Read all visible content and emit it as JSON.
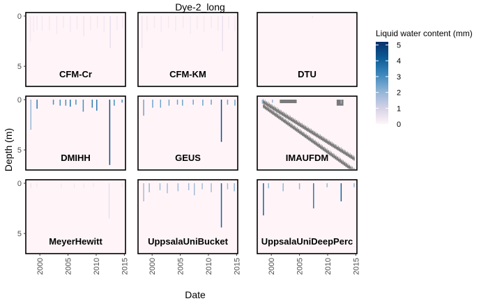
{
  "chart_data": {
    "type": "heatmap",
    "title": "Dye-2_long",
    "xlabel": "Date",
    "ylabel": "Depth (m)",
    "xlim": [
      1997.5,
      2015.2
    ],
    "ylim": [
      7,
      0
    ],
    "x_ticks": [
      "2000",
      "2005",
      "2010",
      "2015"
    ],
    "y_ticks": [
      "0",
      "5"
    ],
    "grid": false,
    "legend": {
      "title": "Liquid water content (mm)",
      "position": "right",
      "ticks": [
        "0",
        "1",
        "2",
        "3",
        "4",
        "5"
      ],
      "range": [
        0,
        5.2
      ],
      "colors": [
        "#fff5f8",
        "#d4d0e6",
        "#8fb4d6",
        "#3d88be",
        "#0c5c96",
        "#08306b"
      ]
    },
    "panels": [
      {
        "name": "CFM-Cr",
        "events": [
          [
            1998.3,
            0,
            2.6,
            0.3
          ],
          [
            1998.9,
            0,
            1.6,
            0.3
          ],
          [
            1999.5,
            0,
            1.4,
            0.3
          ],
          [
            2000.4,
            0,
            1.5,
            0.3
          ],
          [
            2001.7,
            0,
            1.4,
            0.3
          ],
          [
            2003.0,
            0,
            1.8,
            0.3
          ],
          [
            2004.2,
            0,
            1.2,
            0.3
          ],
          [
            2005.4,
            0,
            1.6,
            0.3
          ],
          [
            2006.6,
            0,
            1.3,
            0.3
          ],
          [
            2007.8,
            0,
            2.0,
            0.4
          ],
          [
            2009.0,
            0,
            1.4,
            0.3
          ],
          [
            2010.2,
            0,
            1.2,
            0.3
          ],
          [
            2011.4,
            0,
            1.6,
            0.3
          ],
          [
            2012.5,
            0,
            3.2,
            0.6
          ],
          [
            2013.7,
            0,
            1.4,
            0.3
          ],
          [
            2014.7,
            0,
            1.2,
            0.3
          ]
        ]
      },
      {
        "name": "CFM-KM",
        "events": [
          [
            1998.2,
            0,
            3.2,
            0.4
          ],
          [
            1999.1,
            0,
            1.5,
            0.3
          ],
          [
            2000.4,
            0,
            1.2,
            0.3
          ],
          [
            2001.6,
            0,
            1.6,
            0.3
          ],
          [
            2002.9,
            0,
            1.2,
            0.3
          ],
          [
            2004.2,
            0,
            1.5,
            0.3
          ],
          [
            2005.5,
            0,
            1.2,
            0.3
          ],
          [
            2006.8,
            0,
            1.8,
            0.3
          ],
          [
            2008.0,
            0,
            1.3,
            0.3
          ],
          [
            2009.2,
            0,
            1.6,
            0.3
          ],
          [
            2010.5,
            0,
            1.2,
            0.3
          ],
          [
            2011.7,
            0,
            1.5,
            0.3
          ],
          [
            2012.5,
            0,
            3.5,
            0.6
          ],
          [
            2013.6,
            0,
            1.3,
            0.3
          ],
          [
            2014.7,
            0,
            1.5,
            0.3
          ]
        ]
      },
      {
        "name": "DTU",
        "events": [
          [
            2007.3,
            0,
            0.2,
            0.4
          ]
        ]
      },
      {
        "name": "DMIHH",
        "events": [
          [
            1998.4,
            0,
            3.0,
            2.0
          ],
          [
            1999.5,
            0,
            0.9,
            3.5
          ],
          [
            2002.4,
            0,
            0.5,
            3.0
          ],
          [
            2003.6,
            0,
            0.6,
            3.0
          ],
          [
            2004.6,
            0,
            0.6,
            3.0
          ],
          [
            2005.4,
            0,
            0.7,
            3.5
          ],
          [
            2006.4,
            0,
            0.5,
            3.0
          ],
          [
            2007.7,
            0,
            1.2,
            3.0
          ],
          [
            2009.3,
            0,
            0.8,
            3.5
          ],
          [
            2010.1,
            0,
            1.1,
            3.5
          ],
          [
            2012.4,
            0,
            6.5,
            4.5
          ],
          [
            2013.2,
            0,
            0.6,
            3.0
          ],
          [
            2014.6,
            0,
            0.3,
            3.0
          ]
        ]
      },
      {
        "name": "GEUS",
        "events": [
          [
            1998.5,
            0,
            1.6,
            2.5
          ],
          [
            2000.1,
            0,
            0.8,
            2.5
          ],
          [
            2001.5,
            0,
            0.8,
            2.5
          ],
          [
            2003.0,
            0,
            0.6,
            2.5
          ],
          [
            2004.5,
            0,
            0.5,
            2.5
          ],
          [
            2005.4,
            0,
            0.6,
            2.5
          ],
          [
            2007.3,
            0,
            0.5,
            2.5
          ],
          [
            2009.0,
            0,
            0.6,
            2.5
          ],
          [
            2010.5,
            0,
            0.5,
            2.5
          ],
          [
            2012.3,
            0,
            4.2,
            4.5
          ],
          [
            2013.4,
            0,
            0.5,
            2.5
          ],
          [
            2014.7,
            0,
            0.6,
            2.5
          ]
        ]
      },
      {
        "name": "IMAUFDM",
        "events": [
          [
            1998.4,
            0,
            0.4,
            2.0
          ],
          [
            2000.2,
            0,
            0.3,
            2.0
          ],
          [
            2012.4,
            0,
            0.4,
            2.0
          ]
        ],
        "gray_bands": true
      },
      {
        "name": "MeyerHewitt",
        "events": [
          [
            1998.4,
            0,
            0.5,
            0.4
          ],
          [
            1999.5,
            0,
            0.4,
            0.3
          ],
          [
            2003.8,
            0,
            0.5,
            0.3
          ],
          [
            2006.1,
            0,
            0.5,
            0.3
          ],
          [
            2007.8,
            0,
            0.5,
            0.3
          ],
          [
            2009.5,
            0,
            0.4,
            0.3
          ],
          [
            2012.3,
            0,
            3.5,
            0.6
          ],
          [
            2014.6,
            0,
            0.4,
            0.3
          ]
        ]
      },
      {
        "name": "UppsalaUniBucket",
        "events": [
          [
            1998.5,
            0,
            1.8,
            1.8
          ],
          [
            1999.5,
            0,
            0.9,
            2.0
          ],
          [
            2001.4,
            0,
            0.7,
            1.8
          ],
          [
            2002.7,
            0,
            1.0,
            1.8
          ],
          [
            2004.6,
            0,
            0.8,
            1.8
          ],
          [
            2006.5,
            0,
            0.7,
            1.8
          ],
          [
            2007.5,
            0,
            1.2,
            1.8
          ],
          [
            2008.9,
            0,
            0.6,
            1.8
          ],
          [
            2010.5,
            0,
            0.9,
            1.8
          ],
          [
            2012.3,
            0,
            4.4,
            4.0
          ],
          [
            2013.4,
            0,
            0.6,
            1.8
          ],
          [
            2014.6,
            0,
            0.8,
            2.0
          ]
        ]
      },
      {
        "name": "UppsalaUniDeepPerc",
        "events": [
          [
            1998.6,
            0,
            3.2,
            4.0
          ],
          [
            1999.5,
            0,
            0.5,
            2.0
          ],
          [
            2002.1,
            0,
            0.8,
            2.0
          ],
          [
            2005.0,
            0,
            0.6,
            2.0
          ],
          [
            2007.5,
            0,
            2.5,
            3.5
          ],
          [
            2009.9,
            0,
            0.4,
            2.0
          ],
          [
            2012.4,
            0,
            1.8,
            4.0
          ],
          [
            2014.7,
            0,
            0.4,
            2.0
          ]
        ]
      }
    ]
  }
}
